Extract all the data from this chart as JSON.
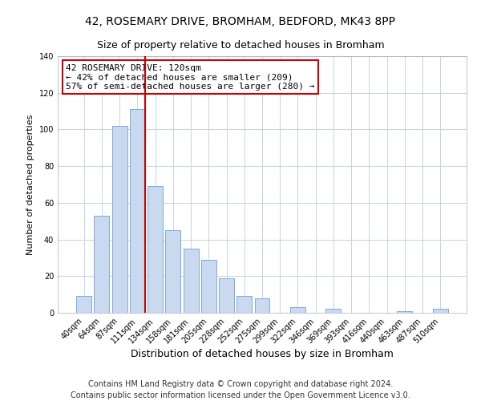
{
  "title": "42, ROSEMARY DRIVE, BROMHAM, BEDFORD, MK43 8PP",
  "subtitle": "Size of property relative to detached houses in Bromham",
  "xlabel": "Distribution of detached houses by size in Bromham",
  "ylabel": "Number of detached properties",
  "bar_labels": [
    "40sqm",
    "64sqm",
    "87sqm",
    "111sqm",
    "134sqm",
    "158sqm",
    "181sqm",
    "205sqm",
    "228sqm",
    "252sqm",
    "275sqm",
    "299sqm",
    "322sqm",
    "346sqm",
    "369sqm",
    "393sqm",
    "416sqm",
    "440sqm",
    "463sqm",
    "487sqm",
    "510sqm"
  ],
  "bar_values": [
    9,
    53,
    102,
    111,
    69,
    45,
    35,
    29,
    19,
    9,
    8,
    0,
    3,
    0,
    2,
    0,
    0,
    0,
    1,
    0,
    2
  ],
  "bar_color": "#c8d9f0",
  "bar_edge_color": "#7aadd4",
  "vline_color": "#cc0000",
  "ylim": [
    0,
    140
  ],
  "yticks": [
    0,
    20,
    40,
    60,
    80,
    100,
    120,
    140
  ],
  "annotation_title": "42 ROSEMARY DRIVE: 120sqm",
  "annotation_line1": "← 42% of detached houses are smaller (209)",
  "annotation_line2": "57% of semi-detached houses are larger (280) →",
  "annotation_box_color": "#ffffff",
  "annotation_box_edge": "#cc0000",
  "footer_line1": "Contains HM Land Registry data © Crown copyright and database right 2024.",
  "footer_line2": "Contains public sector information licensed under the Open Government Licence v3.0.",
  "title_fontsize": 10,
  "subtitle_fontsize": 9,
  "xlabel_fontsize": 9,
  "ylabel_fontsize": 8,
  "tick_fontsize": 7,
  "annotation_fontsize": 8,
  "footer_fontsize": 7
}
